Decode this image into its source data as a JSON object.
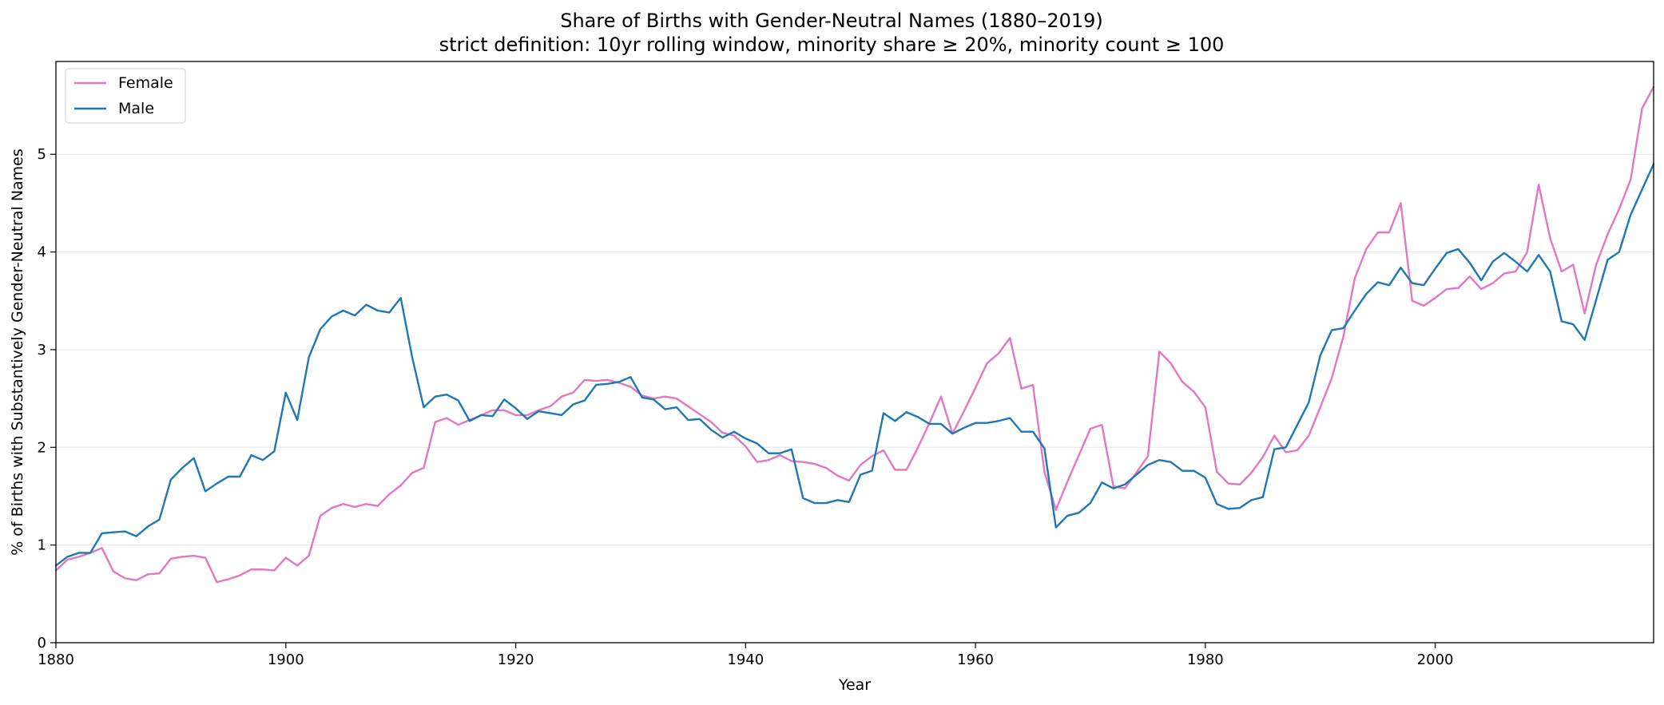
{
  "chart_data": {
    "type": "line",
    "title": "Share of Births with Gender-Neutral Names (1880–2019)",
    "subtitle": "strict definition: 10yr rolling window, minority share ≥ 20%, minority count ≥ 100",
    "xlabel": "Year",
    "ylabel": "% of Births with Substantively Gender-Neutral Names",
    "xlim": [
      1880,
      2019
    ],
    "ylim": [
      0,
      5.95
    ],
    "x_ticks": [
      1880,
      1900,
      1920,
      1940,
      1960,
      1980,
      2000
    ],
    "y_ticks": [
      0,
      1,
      2,
      3,
      4,
      5
    ],
    "grid": "horizontal",
    "legend_position": "top-left",
    "x": [
      1880,
      1881,
      1882,
      1883,
      1884,
      1885,
      1886,
      1887,
      1888,
      1889,
      1890,
      1891,
      1892,
      1893,
      1894,
      1895,
      1896,
      1897,
      1898,
      1899,
      1900,
      1901,
      1902,
      1903,
      1904,
      1905,
      1906,
      1907,
      1908,
      1909,
      1910,
      1911,
      1912,
      1913,
      1914,
      1915,
      1916,
      1917,
      1918,
      1919,
      1920,
      1921,
      1922,
      1923,
      1924,
      1925,
      1926,
      1927,
      1928,
      1929,
      1930,
      1931,
      1932,
      1933,
      1934,
      1935,
      1936,
      1937,
      1938,
      1939,
      1940,
      1941,
      1942,
      1943,
      1944,
      1945,
      1946,
      1947,
      1948,
      1949,
      1950,
      1951,
      1952,
      1953,
      1954,
      1955,
      1956,
      1957,
      1958,
      1959,
      1960,
      1961,
      1962,
      1963,
      1964,
      1965,
      1966,
      1967,
      1968,
      1969,
      1970,
      1971,
      1972,
      1973,
      1974,
      1975,
      1976,
      1977,
      1978,
      1979,
      1980,
      1981,
      1982,
      1983,
      1984,
      1985,
      1986,
      1987,
      1988,
      1989,
      1990,
      1991,
      1992,
      1993,
      1994,
      1995,
      1996,
      1997,
      1998,
      1999,
      2000,
      2001,
      2002,
      2003,
      2004,
      2005,
      2006,
      2007,
      2008,
      2009,
      2010,
      2011,
      2012,
      2013,
      2014,
      2015,
      2016,
      2017,
      2018,
      2019
    ],
    "series": [
      {
        "name": "Female",
        "color": "#e377c2",
        "values": [
          0.74,
          0.85,
          0.88,
          0.92,
          0.97,
          0.73,
          0.66,
          0.64,
          0.7,
          0.71,
          0.86,
          0.88,
          0.89,
          0.87,
          0.62,
          0.65,
          0.69,
          0.75,
          0.75,
          0.74,
          0.87,
          0.79,
          0.89,
          1.3,
          1.38,
          1.42,
          1.39,
          1.42,
          1.4,
          1.52,
          1.61,
          1.74,
          1.79,
          2.26,
          2.3,
          2.23,
          2.28,
          2.33,
          2.38,
          2.38,
          2.33,
          2.33,
          2.38,
          2.42,
          2.52,
          2.56,
          2.69,
          2.68,
          2.69,
          2.66,
          2.62,
          2.53,
          2.5,
          2.52,
          2.5,
          2.42,
          2.34,
          2.26,
          2.15,
          2.12,
          2.01,
          1.85,
          1.87,
          1.92,
          1.86,
          1.85,
          1.83,
          1.79,
          1.71,
          1.66,
          1.82,
          1.91,
          1.97,
          1.77,
          1.77,
          2.0,
          2.25,
          2.52,
          2.14,
          2.37,
          2.61,
          2.86,
          2.96,
          3.12,
          2.6,
          2.64,
          1.75,
          1.36,
          1.65,
          1.92,
          2.19,
          2.23,
          1.6,
          1.58,
          1.74,
          1.91,
          2.98,
          2.86,
          2.67,
          2.57,
          2.41,
          1.75,
          1.63,
          1.62,
          1.74,
          1.9,
          2.12,
          1.95,
          1.97,
          2.12,
          2.41,
          2.71,
          3.13,
          3.73,
          4.03,
          4.2,
          4.2,
          4.5,
          3.5,
          3.45,
          3.53,
          3.62,
          3.63,
          3.75,
          3.62,
          3.68,
          3.78,
          3.8,
          4.0,
          4.69,
          4.14,
          3.8,
          3.87,
          3.37,
          3.87,
          4.18,
          4.44,
          4.74,
          5.47,
          5.69
        ]
      },
      {
        "name": "Male",
        "color": "#1f77b4",
        "values": [
          0.79,
          0.88,
          0.92,
          0.92,
          1.12,
          1.13,
          1.14,
          1.09,
          1.19,
          1.26,
          1.67,
          1.79,
          1.89,
          1.55,
          1.63,
          1.7,
          1.7,
          1.92,
          1.87,
          1.96,
          2.56,
          2.28,
          2.92,
          3.21,
          3.34,
          3.4,
          3.35,
          3.46,
          3.4,
          3.38,
          3.53,
          2.92,
          2.41,
          2.52,
          2.54,
          2.48,
          2.27,
          2.33,
          2.32,
          2.49,
          2.4,
          2.29,
          2.37,
          2.35,
          2.33,
          2.44,
          2.48,
          2.64,
          2.65,
          2.67,
          2.72,
          2.51,
          2.49,
          2.39,
          2.41,
          2.28,
          2.29,
          2.18,
          2.1,
          2.16,
          2.09,
          2.04,
          1.94,
          1.94,
          1.98,
          1.48,
          1.43,
          1.43,
          1.46,
          1.44,
          1.72,
          1.76,
          2.35,
          2.27,
          2.36,
          2.31,
          2.24,
          2.24,
          2.14,
          2.2,
          2.25,
          2.25,
          2.27,
          2.3,
          2.16,
          2.16,
          1.99,
          1.18,
          1.3,
          1.33,
          1.43,
          1.64,
          1.58,
          1.62,
          1.72,
          1.82,
          1.87,
          1.85,
          1.76,
          1.76,
          1.69,
          1.42,
          1.37,
          1.38,
          1.46,
          1.49,
          1.98,
          2.0,
          2.23,
          2.46,
          2.94,
          3.2,
          3.22,
          3.4,
          3.57,
          3.69,
          3.66,
          3.84,
          3.68,
          3.66,
          3.83,
          3.99,
          4.03,
          3.89,
          3.71,
          3.9,
          3.99,
          3.9,
          3.8,
          3.97,
          3.8,
          3.29,
          3.26,
          3.1,
          3.51,
          3.92,
          4.0,
          4.38,
          4.64,
          4.9
        ]
      }
    ]
  }
}
